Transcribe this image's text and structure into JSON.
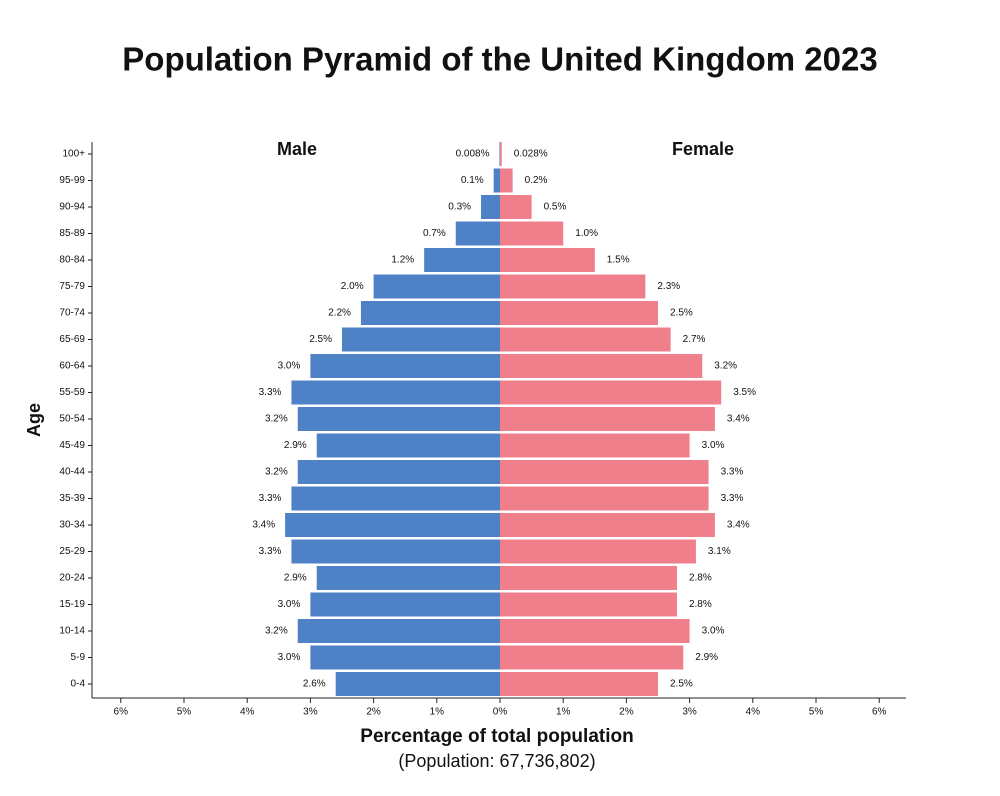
{
  "chart_data": {
    "type": "bar",
    "orientation": "horizontal",
    "title": "Population Pyramid of the United Kingdom 2023",
    "ylabel": "Age",
    "xlabel": "Percentage of total population",
    "subtitle": "(Population: 67,736,802)",
    "categories": [
      "0-4",
      "5-9",
      "10-14",
      "15-19",
      "20-24",
      "25-29",
      "30-34",
      "35-39",
      "40-44",
      "45-49",
      "50-54",
      "55-59",
      "60-64",
      "65-69",
      "70-74",
      "75-79",
      "80-84",
      "85-89",
      "90-94",
      "95-99",
      "100+"
    ],
    "series": [
      {
        "name": "Male",
        "color": "#4f81c7",
        "values": [
          2.6,
          3.0,
          3.2,
          3.0,
          2.9,
          3.3,
          3.4,
          3.3,
          3.2,
          2.9,
          3.2,
          3.3,
          3.0,
          2.5,
          2.2,
          2.0,
          1.2,
          0.7,
          0.3,
          0.1,
          0.008
        ],
        "value_labels": [
          "2.6%",
          "3.0%",
          "3.2%",
          "3.0%",
          "2.9%",
          "3.3%",
          "3.4%",
          "3.3%",
          "3.2%",
          "2.9%",
          "3.2%",
          "3.3%",
          "3.0%",
          "2.5%",
          "2.2%",
          "2.0%",
          "1.2%",
          "0.7%",
          "0.3%",
          "0.1%",
          "0.008%"
        ]
      },
      {
        "name": "Female",
        "color": "#f07f8c",
        "values": [
          2.5,
          2.9,
          3.0,
          2.8,
          2.8,
          3.1,
          3.4,
          3.3,
          3.3,
          3.0,
          3.4,
          3.5,
          3.2,
          2.7,
          2.5,
          2.3,
          1.5,
          1.0,
          0.5,
          0.2,
          0.028
        ],
        "value_labels": [
          "2.5%",
          "2.9%",
          "3.0%",
          "2.8%",
          "2.8%",
          "3.1%",
          "3.4%",
          "3.3%",
          "3.3%",
          "3.0%",
          "3.4%",
          "3.5%",
          "3.2%",
          "2.7%",
          "2.5%",
          "2.3%",
          "1.5%",
          "1.0%",
          "0.5%",
          "0.2%",
          "0.028%"
        ]
      }
    ],
    "xlim": [
      -6.4,
      6.4
    ],
    "xticks": [
      {
        "value": -6,
        "label": "6%"
      },
      {
        "value": -5,
        "label": "5%"
      },
      {
        "value": -4,
        "label": "4%"
      },
      {
        "value": -3,
        "label": "3%"
      },
      {
        "value": -2,
        "label": "2%"
      },
      {
        "value": -1,
        "label": "1%"
      },
      {
        "value": 0,
        "label": "0%"
      },
      {
        "value": 1,
        "label": "1%"
      },
      {
        "value": 2,
        "label": "2%"
      },
      {
        "value": 3,
        "label": "3%"
      },
      {
        "value": 4,
        "label": "4%"
      },
      {
        "value": 5,
        "label": "5%"
      },
      {
        "value": 6,
        "label": "6%"
      }
    ]
  }
}
